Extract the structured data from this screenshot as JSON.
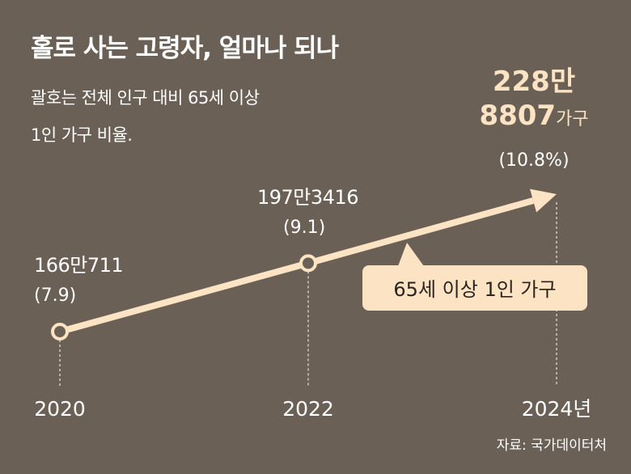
{
  "title": "홀로 사는 고령자, 얼마나 되나",
  "subtitle_lines": [
    "괄호는 전체 인구 대비 65세 이상",
    "1인 가구 비율."
  ],
  "source": "자료: 국가데이터처",
  "colors": {
    "background": "#6b6056",
    "line": "#fbe3c3",
    "text": "#ffffff",
    "label_box": "#fbe3c3"
  },
  "chart_data": {
    "type": "line",
    "x": [
      2020,
      2022,
      2024
    ],
    "tick_labels": [
      "2020",
      "2022",
      "2024년"
    ],
    "series": [
      {
        "name": "65세 이상 1인 가구",
        "values": [
          1660711,
          1973416,
          2288807
        ],
        "value_labels": [
          "166만711",
          "197만3416",
          "228만"
        ],
        "value_label_extra": "8807",
        "value_label_unit": "가구",
        "ratio": [
          7.9,
          9.1,
          10.8
        ],
        "ratio_labels": [
          "(7.9)",
          "(9.1)",
          "(10.8%)"
        ]
      }
    ],
    "xlabel": "",
    "ylabel": "",
    "grid": false,
    "legend": "callout"
  }
}
